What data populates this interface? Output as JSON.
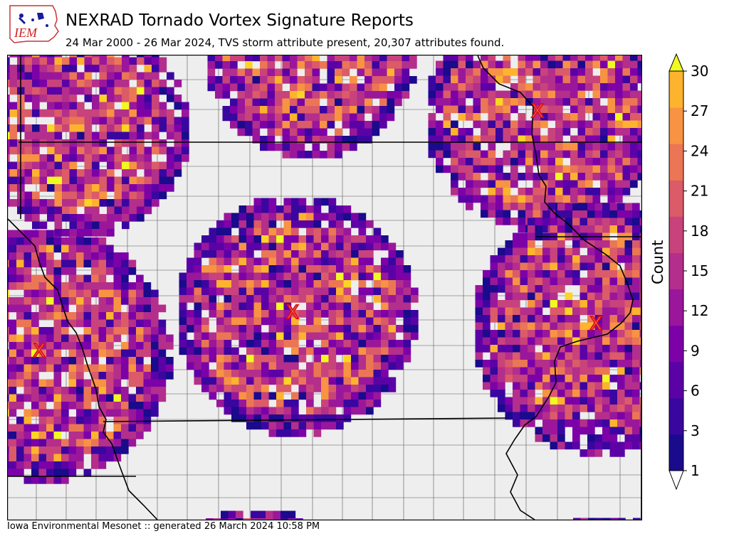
{
  "header": {
    "logo_text": "IEM",
    "title": "NEXRAD Tornado Vortex Signature Reports",
    "subtitle": "24 Mar 2000 - 26 Mar 2024, TVS storm attribute present, 20,307 attributes found."
  },
  "footer": {
    "text": "Iowa Environmental Mesonet :: generated 26 March 2024 10:58 PM"
  },
  "colorbar": {
    "label": "Count",
    "ticks": [
      "1",
      "3",
      "6",
      "9",
      "12",
      "15",
      "18",
      "21",
      "24",
      "27",
      "30"
    ],
    "colors": [
      "#1a0a8c",
      "#3a06a0",
      "#5b02a6",
      "#7c02a8",
      "#9a179b",
      "#b42e8b",
      "#c8437b",
      "#db5b68",
      "#eb7655",
      "#f79342",
      "#fdb32e",
      "#fbd424",
      "#f0f921"
    ]
  },
  "map": {
    "background_color": "#eeeeee",
    "county_line_color": "#555555",
    "state_line_color": "#000000",
    "radar_sites": [
      {
        "label": "X",
        "lat": 43.82,
        "lon": -91.19
      },
      {
        "label": "X",
        "lat": 41.73,
        "lon": -93.72
      },
      {
        "label": "X",
        "lat": 41.32,
        "lon": -96.37
      },
      {
        "label": "X",
        "lat": 41.61,
        "lon": -90.58
      }
    ]
  }
}
